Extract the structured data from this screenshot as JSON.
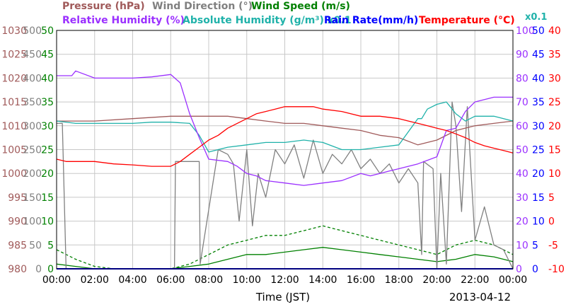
{
  "chart_data": {
    "type": "line",
    "xlabel": "Time (JST)",
    "date": "2013-04-12",
    "x_ticks": [
      "00:00",
      "02:00",
      "04:00",
      "06:00",
      "08:00",
      "10:00",
      "12:00",
      "14:00",
      "16:00",
      "18:00",
      "20:00",
      "22:00",
      "00:00"
    ],
    "x_range_hours": [
      0,
      24
    ],
    "grid": true,
    "axes": [
      {
        "name": "Pressure (hPa)",
        "side": "left",
        "color": "#a05a5a",
        "ylim": [
          980,
          1030
        ],
        "ticks": [
          "980",
          "985",
          "990",
          "995",
          "1000",
          "1005",
          "1010",
          "1015",
          "1020",
          "1025",
          "1030"
        ]
      },
      {
        "name": "Wind Direction (°)",
        "side": "left",
        "color": "#808080",
        "ylim": [
          0,
          500
        ],
        "ticks": [
          "0",
          "50",
          "100",
          "150",
          "200",
          "250",
          "300",
          "350",
          "400",
          "450",
          "500"
        ]
      },
      {
        "name": "Wind Speed (m/s)",
        "side": "left",
        "color": "#008000",
        "ylim": [
          0,
          50
        ],
        "ticks": [
          "0",
          "5",
          "10",
          "15",
          "20",
          "25",
          "30",
          "35",
          "40",
          "45",
          "50"
        ]
      },
      {
        "name": "Relative Humidity (%)",
        "side": "right",
        "color": "#9b30ff",
        "ylim": [
          0,
          100
        ],
        "ticks": [
          "0",
          "10",
          "20",
          "30",
          "40",
          "50",
          "60",
          "70",
          "80",
          "90",
          "100"
        ]
      },
      {
        "name": "Absolute Humidity (g/m³) x0.1",
        "side": "right",
        "color": "#20b2aa",
        "ylim": [
          0,
          100
        ],
        "ticks": [
          "0",
          "5",
          "10",
          "15",
          "20",
          "25",
          "30",
          "35",
          "40",
          "45",
          "50"
        ]
      },
      {
        "name": "Rain Rate(mm/h)",
        "side": "right",
        "color": "#0000ff",
        "ylim": [
          0,
          50
        ],
        "ticks": [
          "0",
          "5",
          "10",
          "15",
          "20",
          "25",
          "30",
          "35",
          "40",
          "45",
          "50"
        ]
      },
      {
        "name": "Temperature (°C)",
        "side": "right",
        "color": "#ff0000",
        "ylim": [
          -10,
          40
        ],
        "ticks": [
          "-10",
          "-5",
          "0",
          "5",
          "10",
          "15",
          "20",
          "25",
          "30",
          "35",
          "40"
        ]
      }
    ],
    "series": [
      {
        "name": "Pressure",
        "color": "#a05a5a",
        "axis": "hPa",
        "x": [
          0,
          2,
          4,
          6,
          7,
          8,
          9,
          10,
          11,
          12,
          13,
          14,
          15,
          16,
          17,
          18,
          19,
          20,
          21,
          22,
          23,
          24
        ],
        "y": [
          1011,
          1011,
          1011.5,
          1012,
          1012,
          1012,
          1012,
          1011.5,
          1011,
          1010.5,
          1010.5,
          1010,
          1009.5,
          1009,
          1008,
          1007.5,
          1006,
          1007,
          1009,
          1010,
          1010.5,
          1011
        ]
      },
      {
        "name": "Wind Direction",
        "color": "#808080",
        "axis": "deg",
        "x": [
          0,
          0.3,
          0.5,
          6.2,
          6.25,
          7.5,
          7.55,
          8.5,
          9,
          9.3,
          9.6,
          10,
          10.3,
          10.6,
          11,
          11.5,
          12,
          12.5,
          13,
          13.5,
          14,
          14.5,
          15,
          15.5,
          16,
          16.5,
          17,
          17.5,
          18,
          18.5,
          19,
          19.2,
          19.3,
          19.8,
          20,
          20.2,
          20.5,
          20.8,
          21,
          21.3,
          21.6,
          22,
          22.5,
          23,
          23.5,
          24
        ],
        "y": [
          305,
          305,
          0,
          0,
          225,
          225,
          10,
          250,
          240,
          220,
          100,
          250,
          90,
          200,
          150,
          250,
          220,
          260,
          190,
          270,
          200,
          240,
          220,
          250,
          210,
          230,
          200,
          220,
          180,
          210,
          180,
          30,
          225,
          210,
          0,
          200,
          10,
          350,
          300,
          120,
          340,
          60,
          130,
          50,
          40,
          0
        ]
      },
      {
        "name": "Wind Speed",
        "color": "#008000",
        "axis": "ms",
        "x": [
          0,
          1,
          2,
          3,
          4,
          5,
          6,
          7,
          8,
          9,
          10,
          11,
          12,
          13,
          14,
          15,
          16,
          17,
          18,
          19,
          20,
          21,
          22,
          23,
          24
        ],
        "y": [
          1,
          0.5,
          0,
          0,
          0,
          0,
          0,
          0.5,
          1,
          2,
          3,
          3,
          3.5,
          4,
          4.5,
          4,
          3.5,
          3,
          2.5,
          2,
          1.5,
          2,
          3,
          2.5,
          1.5
        ]
      },
      {
        "name": "Wind Speed (gust)",
        "color": "#008000",
        "axis": "ms",
        "dashed": true,
        "x": [
          0,
          1,
          2,
          3,
          4,
          5,
          6,
          7,
          8,
          9,
          10,
          11,
          12,
          13,
          14,
          15,
          16,
          17,
          18,
          19,
          20,
          21,
          22,
          23,
          24
        ],
        "y": [
          4,
          2,
          0.5,
          0,
          0,
          0,
          0,
          1,
          3,
          5,
          6,
          7,
          7,
          8,
          9,
          8,
          7,
          6,
          5,
          4,
          3,
          5,
          6,
          5,
          3
        ]
      },
      {
        "name": "Relative Humidity",
        "color": "#9b30ff",
        "axis": "pct",
        "x": [
          0,
          0.8,
          1,
          2,
          4,
          5,
          6,
          6.5,
          7,
          7.5,
          8,
          9,
          9.5,
          10,
          10.5,
          11,
          12,
          13,
          14,
          15,
          16,
          16.5,
          17,
          17.5,
          18,
          19,
          20,
          20.5,
          21,
          21.5,
          22,
          23,
          24
        ],
        "y": [
          81,
          81,
          83,
          80,
          80,
          80.5,
          81.5,
          78,
          65,
          55,
          46,
          45,
          43,
          40,
          39,
          37,
          36,
          35,
          36,
          37,
          40,
          39,
          40,
          41,
          42,
          44,
          47,
          58,
          59,
          66,
          70,
          72,
          72
        ]
      },
      {
        "name": "Absolute Humidity",
        "color": "#20b2aa",
        "axis": "ah",
        "x": [
          0,
          1,
          2,
          3,
          4,
          5,
          6,
          7,
          7.5,
          8,
          9,
          10,
          11,
          12,
          13,
          14,
          15,
          16,
          17,
          18,
          19,
          19.2,
          19.5,
          20,
          20.5,
          21,
          21.5,
          22,
          23,
          24
        ],
        "y": [
          62,
          61,
          61,
          61,
          61,
          61.5,
          61.5,
          61,
          56,
          49,
          51,
          52,
          53,
          53,
          54,
          53,
          50,
          50,
          51,
          52,
          63,
          63,
          67,
          69,
          70,
          65,
          62,
          64,
          64,
          62
        ]
      },
      {
        "name": "Rain Rate",
        "color": "#0000ff",
        "axis": "rain",
        "x": [
          0,
          24
        ],
        "y": [
          0,
          0
        ]
      },
      {
        "name": "Temperature",
        "color": "#ff0000",
        "axis": "temp",
        "x": [
          0,
          0.5,
          1,
          2,
          3,
          4,
          5,
          6,
          6.5,
          7,
          7.5,
          8,
          8.5,
          9,
          9.5,
          10,
          10.5,
          11,
          11.5,
          12,
          12.5,
          13,
          13.5,
          14,
          15,
          16,
          17,
          18,
          18.5,
          19,
          19.5,
          20,
          20.5,
          21,
          21.5,
          22,
          22.5,
          23,
          23.5,
          24
        ],
        "y": [
          13,
          12.5,
          12.5,
          12.5,
          12,
          11.8,
          11.5,
          11.5,
          12.5,
          14,
          15.5,
          17,
          18,
          19.5,
          20.5,
          21.5,
          22.5,
          23,
          23.5,
          24,
          24,
          24,
          24,
          23.5,
          23,
          22,
          22,
          21.5,
          21,
          20.5,
          20,
          19.5,
          19,
          18.3,
          17.5,
          16.5,
          15.8,
          15.3,
          14.8,
          14.3
        ]
      }
    ]
  }
}
